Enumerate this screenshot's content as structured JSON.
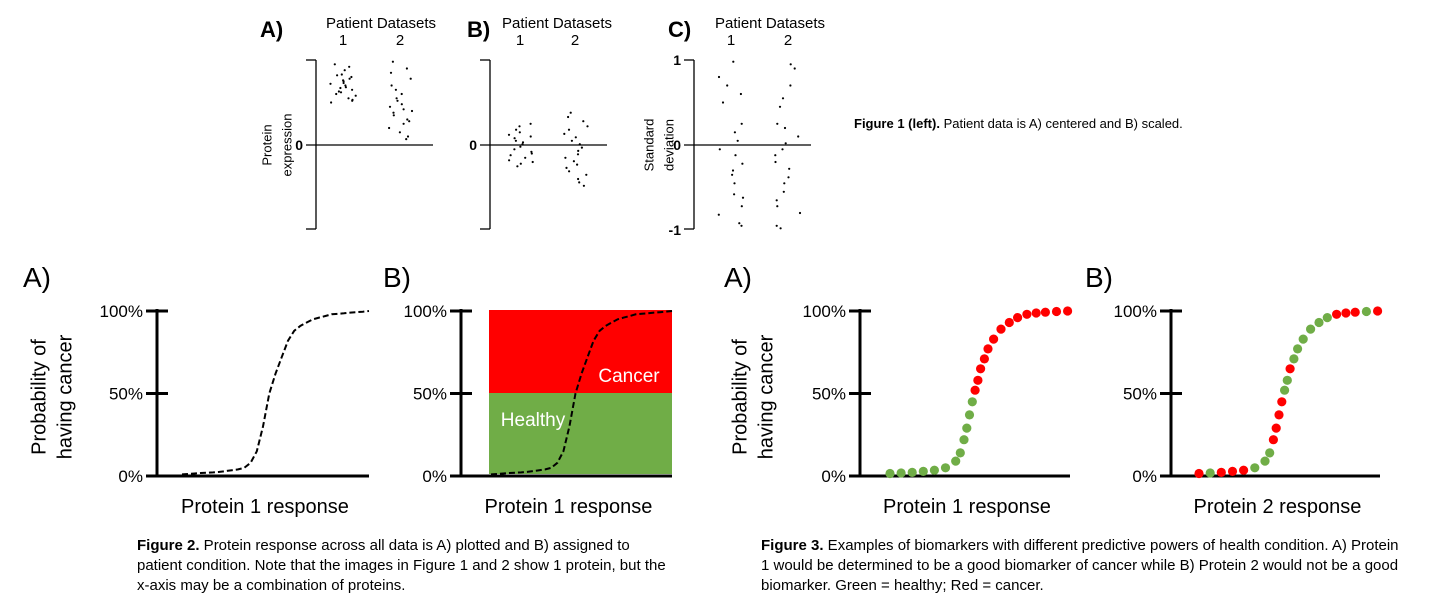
{
  "figure1": {
    "panels": [
      {
        "letter": "A)",
        "header": "Patient Datasets",
        "datasets": [
          "1",
          "2"
        ],
        "ylabel_lines": [
          "Protein",
          "expression"
        ],
        "yticks": [
          {
            "label": "0",
            "value": 0
          }
        ],
        "dataset1_y": [
          0.95,
          0.92,
          0.88,
          0.83,
          0.82,
          0.8,
          0.78,
          0.76,
          0.75,
          0.73,
          0.72,
          0.7,
          0.68,
          0.67,
          0.65,
          0.63,
          0.62,
          0.6,
          0.58,
          0.55,
          0.53,
          0.52,
          0.5
        ],
        "dataset2_y": [
          0.98,
          0.9,
          0.85,
          0.78,
          0.7,
          0.65,
          0.6,
          0.55,
          0.52,
          0.48,
          0.45,
          0.42,
          0.4,
          0.38,
          0.35,
          0.3,
          0.28,
          0.25,
          0.2,
          0.15,
          0.1,
          0.07
        ]
      },
      {
        "letter": "B)",
        "header": "Patient Datasets",
        "datasets": [
          "1",
          "2"
        ],
        "ylabel_lines": [],
        "yticks": [
          {
            "label": "0",
            "value": 0
          }
        ],
        "dataset1_y": [
          0.25,
          0.22,
          0.18,
          0.15,
          0.12,
          0.1,
          0.08,
          0.05,
          0.03,
          0.01,
          -0.02,
          -0.05,
          -0.08,
          -0.1,
          -0.12,
          -0.15,
          -0.18,
          -0.2,
          -0.22,
          -0.25
        ],
        "dataset2_y": [
          0.38,
          0.33,
          0.28,
          0.22,
          0.18,
          0.13,
          0.09,
          0.05,
          0.01,
          -0.03,
          -0.07,
          -0.11,
          -0.15,
          -0.19,
          -0.23,
          -0.27,
          -0.31,
          -0.35,
          -0.4,
          -0.44,
          -0.48
        ]
      },
      {
        "letter": "C)",
        "header": "Patient Datasets",
        "datasets": [
          "1",
          "2"
        ],
        "ylabel_lines": [
          "Standard",
          "deviation"
        ],
        "yticks": [
          {
            "label": "1",
            "value": 1
          },
          {
            "label": "0",
            "value": 0
          },
          {
            "label": "-1",
            "value": -1
          }
        ],
        "dataset1_y": [
          0.98,
          0.8,
          0.7,
          0.6,
          0.5,
          0.25,
          0.15,
          0.05,
          -0.05,
          -0.12,
          -0.22,
          -0.3,
          -0.35,
          -0.45,
          -0.58,
          -0.62,
          -0.72,
          -0.82,
          -0.92,
          -0.95
        ],
        "dataset2_y": [
          0.95,
          0.9,
          0.7,
          0.55,
          0.45,
          0.25,
          0.2,
          0.1,
          0.02,
          -0.05,
          -0.12,
          -0.2,
          -0.28,
          -0.38,
          -0.45,
          -0.55,
          -0.65,
          -0.72,
          -0.8,
          -0.95,
          -0.98
        ]
      }
    ],
    "caption_bold": "Figure 1 (left).",
    "caption_text": " Patient data is A) centered and B) scaled."
  },
  "figure2": {
    "panelA": {
      "letter": "A)",
      "ylabel_lines": [
        "Probability of",
        "having cancer"
      ],
      "xlabel": "Protein 1 response"
    },
    "panelB": {
      "letter": "B)",
      "xlabel": "Protein 1 response",
      "cancer_label": "Cancer",
      "healthy_label": "Healthy"
    },
    "yticks": [
      {
        "label": "100%",
        "value": 100
      },
      {
        "label": "50%",
        "value": 50
      },
      {
        "label": "0%",
        "value": 0
      }
    ],
    "curve_y": [
      1,
      1.2,
      1.5,
      1.8,
      2,
      2.2,
      2.5,
      3,
      3.5,
      4,
      5,
      8,
      15,
      30,
      50,
      62,
      72,
      82,
      88,
      91,
      93,
      95,
      96,
      97,
      98,
      98.3,
      98.6,
      99,
      99.3,
      99.6,
      100
    ],
    "caption_bold": "Figure 2.",
    "caption_text": " Protein response across all data is A) plotted and B) assigned to patient condition. Note that the images in Figure 1 and 2 show 1 protein, but the x-axis may be a combination of proteins."
  },
  "figure3": {
    "panelA": {
      "letter": "A)",
      "ylabel_lines": [
        "Probability of",
        "having cancer"
      ],
      "xlabel": "Protein 1 response",
      "points": [
        {
          "y": 1.5,
          "c": "g"
        },
        {
          "y": 1.8,
          "c": "g"
        },
        {
          "y": 2.2,
          "c": "g"
        },
        {
          "y": 2.8,
          "c": "g"
        },
        {
          "y": 3.5,
          "c": "g"
        },
        {
          "y": 5,
          "c": "g"
        },
        {
          "y": 9,
          "c": "g"
        },
        {
          "y": 14,
          "c": "g"
        },
        {
          "y": 22,
          "c": "g"
        },
        {
          "y": 29,
          "c": "g"
        },
        {
          "y": 37,
          "c": "g"
        },
        {
          "y": 45,
          "c": "g"
        },
        {
          "y": 52,
          "c": "r"
        },
        {
          "y": 58,
          "c": "r"
        },
        {
          "y": 65,
          "c": "r"
        },
        {
          "y": 71,
          "c": "r"
        },
        {
          "y": 77,
          "c": "r"
        },
        {
          "y": 83,
          "c": "r"
        },
        {
          "y": 89,
          "c": "r"
        },
        {
          "y": 93,
          "c": "r"
        },
        {
          "y": 96,
          "c": "r"
        },
        {
          "y": 98,
          "c": "r"
        },
        {
          "y": 98.8,
          "c": "r"
        },
        {
          "y": 99.3,
          "c": "r"
        },
        {
          "y": 99.7,
          "c": "r"
        },
        {
          "y": 100,
          "c": "r"
        }
      ]
    },
    "panelB": {
      "letter": "B)",
      "xlabel": "Protein 2 response",
      "points": [
        {
          "y": 1.5,
          "c": "r"
        },
        {
          "y": 1.8,
          "c": "g"
        },
        {
          "y": 2.2,
          "c": "r"
        },
        {
          "y": 2.8,
          "c": "r"
        },
        {
          "y": 3.5,
          "c": "r"
        },
        {
          "y": 5,
          "c": "g"
        },
        {
          "y": 9,
          "c": "g"
        },
        {
          "y": 14,
          "c": "g"
        },
        {
          "y": 22,
          "c": "r"
        },
        {
          "y": 29,
          "c": "r"
        },
        {
          "y": 37,
          "c": "r"
        },
        {
          "y": 45,
          "c": "r"
        },
        {
          "y": 52,
          "c": "g"
        },
        {
          "y": 58,
          "c": "g"
        },
        {
          "y": 65,
          "c": "r"
        },
        {
          "y": 71,
          "c": "g"
        },
        {
          "y": 77,
          "c": "g"
        },
        {
          "y": 83,
          "c": "g"
        },
        {
          "y": 89,
          "c": "g"
        },
        {
          "y": 93,
          "c": "g"
        },
        {
          "y": 96,
          "c": "g"
        },
        {
          "y": 98,
          "c": "r"
        },
        {
          "y": 98.8,
          "c": "r"
        },
        {
          "y": 99.3,
          "c": "r"
        },
        {
          "y": 99.7,
          "c": "g"
        },
        {
          "y": 100,
          "c": "r"
        }
      ]
    },
    "yticks": [
      {
        "label": "100%",
        "value": 100
      },
      {
        "label": "50%",
        "value": 50
      },
      {
        "label": "0%",
        "value": 0
      }
    ],
    "caption_bold": "Figure 3.",
    "caption_text": " Examples of biomarkers with different predictive powers of health condition. A) Protein 1 would be determined to be a good biomarker of cancer while B) Protein 2 would not be a good biomarker. Green = healthy; Red = cancer."
  },
  "colors": {
    "cancer": "#ff0000",
    "healthy": "#70ad47",
    "ink": "#000000"
  }
}
